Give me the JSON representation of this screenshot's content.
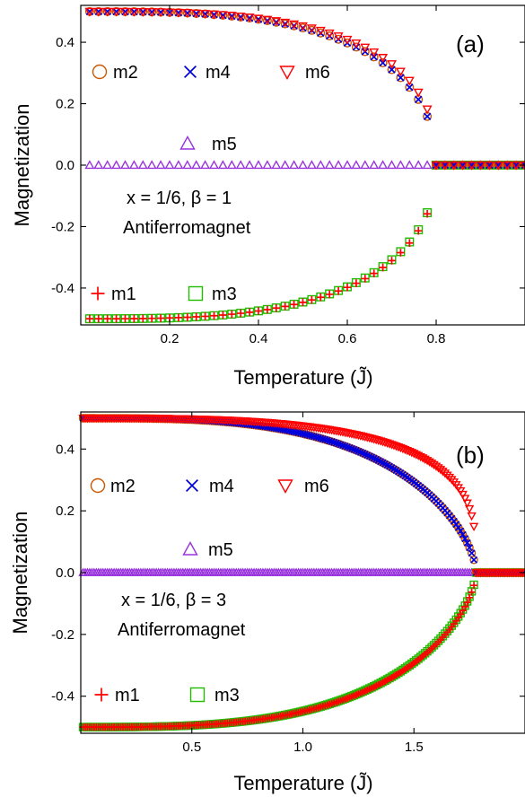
{
  "chart_data": [
    {
      "type": "scatter",
      "panel_label": "(a)",
      "xlabel": "Temperature (J̃)",
      "ylabel": "Magnetization",
      "xlim": [
        0,
        1.0
      ],
      "ylim": [
        -0.52,
        0.52
      ],
      "xticks": [
        0.2,
        0.4,
        0.6,
        0.8
      ],
      "xtick_labels": [
        "0.2",
        "0.4",
        "0.6",
        "0.8"
      ],
      "yticks": [
        -0.4,
        -0.2,
        0.0,
        0.2,
        0.4
      ],
      "ytick_labels": [
        "-0.4",
        "-0.2",
        "0.0",
        "0.2",
        "0.4"
      ],
      "grid": false,
      "x_start": 0.0,
      "x_step": 0.02,
      "x_end": 1.0,
      "Tc": 0.8,
      "annotations": [
        "x = 1/6, β = 1",
        "Antiferromagnet"
      ],
      "series": [
        {
          "name": "m1",
          "marker": "plus",
          "color": "#ff0000",
          "sign": -1,
          "amp": 0.5,
          "beta": 0.45,
          "scale": 1.0
        },
        {
          "name": "m2",
          "marker": "circle",
          "color": "#cc5500",
          "sign": 1,
          "amp": 0.5,
          "beta": 0.45,
          "scale": 1.0
        },
        {
          "name": "m3",
          "marker": "square",
          "color": "#22bb00",
          "sign": -1,
          "amp": 0.5,
          "beta": 0.45,
          "scale": 1.02
        },
        {
          "name": "m4",
          "marker": "x",
          "color": "#0000dd",
          "sign": 1,
          "amp": 0.5,
          "beta": 0.45,
          "scale": 1.0
        },
        {
          "name": "m5",
          "marker": "triangle-up",
          "color": "#9933dd",
          "sign": 0,
          "amp": 0.0,
          "beta": 1,
          "scale": 1.0
        },
        {
          "name": "m6",
          "marker": "triangle-down",
          "color": "#ff0000",
          "sign": 1,
          "amp": 0.5,
          "beta": 0.38,
          "scale": 1.04
        }
      ]
    },
    {
      "type": "scatter",
      "panel_label": "(b)",
      "xlabel": "Temperature (J̃)",
      "ylabel": "Magnetization",
      "xlim": [
        0,
        2.0
      ],
      "ylim": [
        -0.52,
        0.52
      ],
      "xticks": [
        0.5,
        1.0,
        1.5
      ],
      "xtick_labels": [
        "0.5",
        "1.0",
        "1.5"
      ],
      "yticks": [
        -0.4,
        -0.2,
        0.0,
        0.2,
        0.4
      ],
      "ytick_labels": [
        "-0.4",
        "-0.2",
        "0.0",
        "0.2",
        "0.4"
      ],
      "grid": false,
      "x_start": 0.0,
      "x_step": 0.01,
      "x_end": 2.0,
      "Tc": 1.78,
      "annotations": [
        "x = 1/6, β = 3",
        "Antiferromagnet"
      ],
      "series": [
        {
          "name": "m1",
          "marker": "plus",
          "color": "#ff0000",
          "sign": -1,
          "amp": 0.5,
          "beta": 0.62,
          "scale": 1.0
        },
        {
          "name": "m2",
          "marker": "circle",
          "color": "#cc5500",
          "sign": 1,
          "amp": 0.5,
          "beta": 0.62,
          "scale": 1.0
        },
        {
          "name": "m3",
          "marker": "square",
          "color": "#22bb00",
          "sign": -1,
          "amp": 0.5,
          "beta": 0.62,
          "scale": 1.02
        },
        {
          "name": "m4",
          "marker": "x",
          "color": "#0000dd",
          "sign": 1,
          "amp": 0.5,
          "beta": 0.62,
          "scale": 1.0
        },
        {
          "name": "m5",
          "marker": "triangle-up",
          "color": "#9933dd",
          "sign": 0,
          "amp": 0.0,
          "beta": 1,
          "scale": 1.0
        },
        {
          "name": "m6",
          "marker": "triangle-down",
          "color": "#ff0000",
          "sign": 1,
          "amp": 0.5,
          "beta": 0.3,
          "scale": 1.0
        }
      ]
    }
  ]
}
